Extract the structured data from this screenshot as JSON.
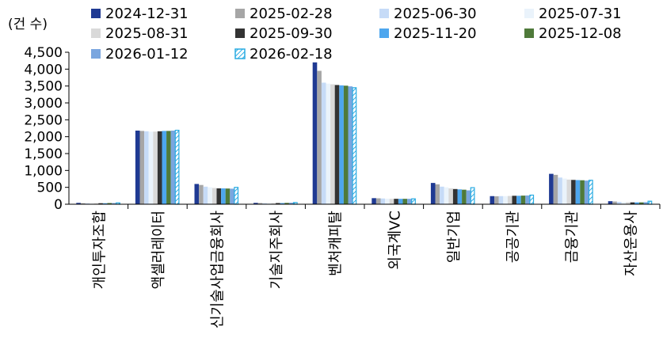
{
  "chart_data": {
    "type": "bar",
    "unit_label": "(건 수)",
    "ylim": [
      0,
      4500
    ],
    "yticks": [
      "0",
      "500",
      "1,000",
      "1,500",
      "2,000",
      "2,500",
      "3,000",
      "3,500",
      "4,000",
      "4,500"
    ],
    "yvalues": [
      0,
      500,
      1000,
      1500,
      2000,
      2500,
      3000,
      3500,
      4000,
      4500
    ],
    "grid": false,
    "legend_position": "top",
    "categories": [
      "개인투자조합",
      "액셀러레이터",
      "신기술사업금융회사",
      "기술지주회사",
      "벤처캐피탈",
      "외국계VC",
      "일반기업",
      "공공기관",
      "금융기관",
      "자산운용사"
    ],
    "series": [
      {
        "name": "2024-12-31",
        "color": "#1f3a93",
        "pattern": "solid",
        "values": [
          40,
          2180,
          600,
          40,
          4200,
          180,
          630,
          240,
          900,
          90
        ]
      },
      {
        "name": "2025-02-28",
        "color": "#a6a6a6",
        "pattern": "solid",
        "values": [
          30,
          2170,
          570,
          35,
          3950,
          175,
          590,
          235,
          870,
          80
        ]
      },
      {
        "name": "2025-06-30",
        "color": "#c6dbf7",
        "pattern": "solid",
        "values": [
          25,
          2160,
          520,
          30,
          3600,
          170,
          520,
          240,
          790,
          70
        ]
      },
      {
        "name": "2025-07-31",
        "color": "#eaf3fb",
        "pattern": "solid",
        "values": [
          20,
          2150,
          500,
          30,
          3570,
          165,
          500,
          240,
          760,
          65
        ]
      },
      {
        "name": "2025-08-31",
        "color": "#d9d9d9",
        "pattern": "solid",
        "values": [
          25,
          2150,
          480,
          30,
          3550,
          160,
          470,
          245,
          730,
          60
        ]
      },
      {
        "name": "2025-09-30",
        "color": "#333333",
        "pattern": "solid",
        "values": [
          30,
          2160,
          470,
          35,
          3530,
          160,
          450,
          250,
          720,
          55
        ]
      },
      {
        "name": "2025-11-20",
        "color": "#4da6ee",
        "pattern": "solid",
        "values": [
          30,
          2170,
          470,
          35,
          3520,
          160,
          440,
          250,
          715,
          55
        ]
      },
      {
        "name": "2025-12-08",
        "color": "#4f7a3a",
        "pattern": "solid",
        "values": [
          35,
          2170,
          465,
          40,
          3510,
          160,
          430,
          255,
          710,
          55
        ]
      },
      {
        "name": "2026-01-12",
        "color": "#7aa6df",
        "pattern": "solid",
        "values": [
          35,
          2180,
          460,
          45,
          3490,
          160,
          410,
          260,
          700,
          60
        ]
      },
      {
        "name": "2026-02-18",
        "color": "#29abe2",
        "pattern": "hatched",
        "values": [
          40,
          2190,
          500,
          50,
          3450,
          160,
          490,
          270,
          710,
          90
        ]
      }
    ]
  }
}
